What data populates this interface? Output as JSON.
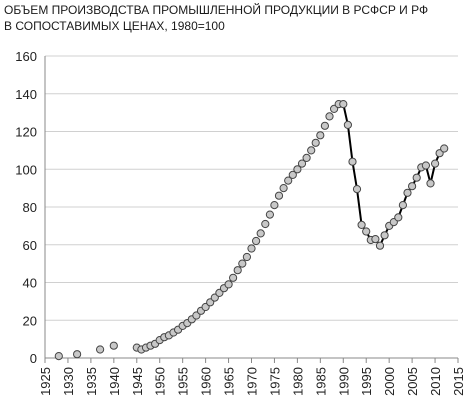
{
  "chart_data": {
    "type": "line",
    "title_line1": "ОБЪЕМ ПРОИЗВОДСТВА ПРОМЫШЛЕННОЙ ПРОДУКЦИИ В РСФСР И РФ",
    "title_line2": "В СОПОСТАВИМЫХ ЦЕНАХ, 1980=100",
    "xlabel": "",
    "ylabel": "",
    "xlim": [
      1925,
      2015
    ],
    "ylim": [
      0,
      160
    ],
    "x_ticks": [
      "1925",
      "1930",
      "1935",
      "1940",
      "1945",
      "1950",
      "1955",
      "1960",
      "1965",
      "1970",
      "1975",
      "1980",
      "1985",
      "1990",
      "1995",
      "2000",
      "2005",
      "2010",
      "2015"
    ],
    "y_ticks": [
      "0",
      "20",
      "40",
      "60",
      "80",
      "100",
      "120",
      "140",
      "160"
    ],
    "grid": "horizontal",
    "legend": "none",
    "colors": {
      "line": "#000000",
      "marker_fill": "#c8c8c8",
      "marker_stroke": "#444444",
      "grid": "#d0d0d0"
    },
    "series": [
      {
        "points": [
          [
            1928,
            1
          ],
          [
            1932,
            2
          ],
          [
            1937,
            4.5
          ],
          [
            1940,
            6.5
          ],
          [
            1945,
            5.5
          ],
          [
            1946,
            4.5
          ],
          [
            1947,
            5.5
          ],
          [
            1948,
            6.5
          ],
          [
            1949,
            7.5
          ],
          [
            1950,
            9.5
          ],
          [
            1951,
            11
          ],
          [
            1952,
            12
          ],
          [
            1953,
            13.5
          ],
          [
            1954,
            15
          ],
          [
            1955,
            17
          ],
          [
            1956,
            18.5
          ],
          [
            1957,
            20.5
          ],
          [
            1958,
            22.5
          ],
          [
            1959,
            25
          ],
          [
            1960,
            27
          ],
          [
            1961,
            29.5
          ],
          [
            1962,
            32
          ],
          [
            1963,
            34.5
          ],
          [
            1964,
            37
          ],
          [
            1965,
            39
          ],
          [
            1966,
            42.5
          ],
          [
            1967,
            46.5
          ],
          [
            1968,
            50
          ],
          [
            1969,
            53.5
          ],
          [
            1970,
            58
          ],
          [
            1971,
            62
          ],
          [
            1972,
            66
          ],
          [
            1973,
            71
          ],
          [
            1974,
            76
          ],
          [
            1975,
            81
          ],
          [
            1976,
            86
          ],
          [
            1977,
            90
          ],
          [
            1978,
            94
          ],
          [
            1979,
            97
          ],
          [
            1980,
            100
          ],
          [
            1981,
            103
          ],
          [
            1982,
            106
          ],
          [
            1983,
            110
          ],
          [
            1984,
            114
          ],
          [
            1985,
            118
          ],
          [
            1986,
            123
          ],
          [
            1987,
            128
          ],
          [
            1988,
            132
          ],
          [
            1989,
            134.5
          ],
          [
            1990,
            134.5
          ],
          [
            1991,
            123.5
          ],
          [
            1992,
            104
          ],
          [
            1993,
            89.5
          ],
          [
            1994,
            70.5
          ],
          [
            1995,
            67
          ],
          [
            1996,
            62.5
          ],
          [
            1997,
            63
          ],
          [
            1998,
            59.5
          ],
          [
            1999,
            65
          ],
          [
            2000,
            70
          ],
          [
            2001,
            72
          ],
          [
            2002,
            74.5
          ],
          [
            2003,
            81
          ],
          [
            2004,
            87.5
          ],
          [
            2005,
            91
          ],
          [
            2006,
            95.5
          ],
          [
            2007,
            101
          ],
          [
            2008,
            102
          ],
          [
            2009,
            92.5
          ],
          [
            2010,
            103
          ],
          [
            2011,
            108.5
          ],
          [
            2012,
            111
          ]
        ],
        "line_from_year": 1991
      }
    ]
  }
}
